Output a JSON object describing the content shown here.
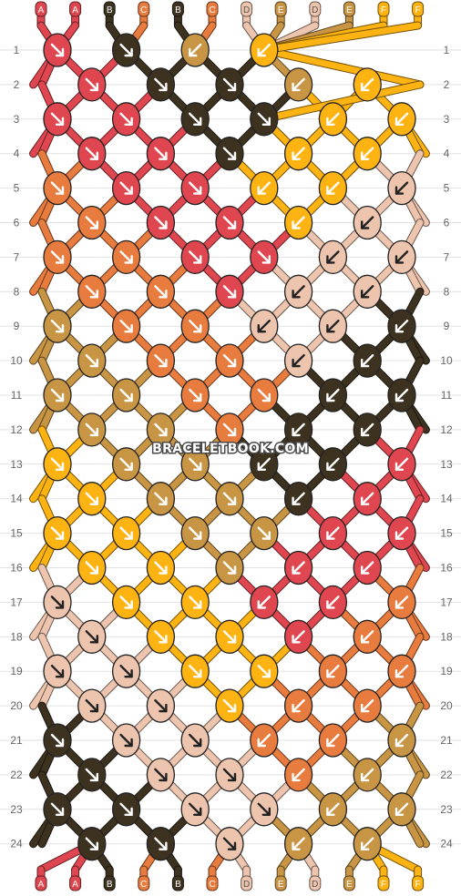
{
  "watermark": "BRACELETBOOK.COM",
  "colors": {
    "A": "#e0464f",
    "B": "#3d3220",
    "C": "#e87b3e",
    "D": "#edc4ae",
    "E": "#c89544",
    "F": "#fdb312"
  },
  "top_strand_letters": [
    "A",
    "A",
    "B",
    "C",
    "B",
    "C",
    "D",
    "E",
    "D",
    "E",
    "F",
    "F"
  ],
  "bottom_strand_letters": [
    "A",
    "A",
    "B",
    "C",
    "B",
    "C",
    "D",
    "E",
    "D",
    "E",
    "F",
    "F"
  ],
  "row_labels": [
    "1",
    "2",
    "3",
    "4",
    "5",
    "6",
    "7",
    "8",
    "9",
    "10",
    "11",
    "12",
    "13",
    "14",
    "15",
    "16",
    "17",
    "18",
    "19",
    "20",
    "21",
    "22",
    "23",
    "24"
  ],
  "knots": [
    [
      [
        "A",
        "dr"
      ],
      [
        "B",
        "dr"
      ],
      [
        "E",
        "dl"
      ],
      [
        "F",
        "dl"
      ]
    ],
    [
      [
        "A",
        "dr"
      ],
      [
        "B",
        "dr"
      ],
      [
        "B",
        "dr"
      ],
      [
        "E",
        "dl"
      ],
      [
        "F",
        "dl"
      ]
    ],
    [
      [
        "A",
        "dr"
      ],
      [
        "A",
        "dr"
      ],
      [
        "B",
        "dr"
      ],
      [
        "B",
        "dr"
      ],
      [
        "F",
        "dl"
      ],
      [
        "F",
        "dl"
      ]
    ],
    [
      [
        "A",
        "dr"
      ],
      [
        "A",
        "dr"
      ],
      [
        "B",
        "dr"
      ],
      [
        "F",
        "dl"
      ],
      [
        "F",
        "dl"
      ]
    ],
    [
      [
        "C",
        "dr"
      ],
      [
        "A",
        "dr"
      ],
      [
        "A",
        "dr"
      ],
      [
        "F",
        "dl"
      ],
      [
        "F",
        "dl"
      ],
      [
        "D",
        "dl"
      ]
    ],
    [
      [
        "C",
        "dr"
      ],
      [
        "A",
        "dr"
      ],
      [
        "A",
        "dr"
      ],
      [
        "F",
        "dl"
      ],
      [
        "D",
        "dl"
      ]
    ],
    [
      [
        "C",
        "dr"
      ],
      [
        "C",
        "dr"
      ],
      [
        "A",
        "dr"
      ],
      [
        "A",
        "dr"
      ],
      [
        "D",
        "dl"
      ],
      [
        "D",
        "dl"
      ]
    ],
    [
      [
        "C",
        "dr"
      ],
      [
        "C",
        "dr"
      ],
      [
        "A",
        "dr"
      ],
      [
        "D",
        "dl"
      ],
      [
        "D",
        "dl"
      ]
    ],
    [
      [
        "E",
        "dr"
      ],
      [
        "C",
        "dr"
      ],
      [
        "C",
        "dr"
      ],
      [
        "D",
        "dl"
      ],
      [
        "D",
        "dl"
      ],
      [
        "B",
        "dl"
      ]
    ],
    [
      [
        "E",
        "dr"
      ],
      [
        "C",
        "dr"
      ],
      [
        "C",
        "dr"
      ],
      [
        "D",
        "dl"
      ],
      [
        "B",
        "dl"
      ]
    ],
    [
      [
        "E",
        "dr"
      ],
      [
        "E",
        "dr"
      ],
      [
        "C",
        "dr"
      ],
      [
        "C",
        "dr"
      ],
      [
        "B",
        "dl"
      ],
      [
        "B",
        "dl"
      ]
    ],
    [
      [
        "E",
        "dr"
      ],
      [
        "E",
        "dr"
      ],
      [
        "C",
        "dr"
      ],
      [
        "B",
        "dl"
      ],
      [
        "B",
        "dl"
      ]
    ],
    [
      [
        "F",
        "dr"
      ],
      [
        "E",
        "dr"
      ],
      [
        "E",
        "dr"
      ],
      [
        "B",
        "dl"
      ],
      [
        "B",
        "dl"
      ],
      [
        "A",
        "dl"
      ]
    ],
    [
      [
        "F",
        "dr"
      ],
      [
        "E",
        "dr"
      ],
      [
        "E",
        "dr"
      ],
      [
        "B",
        "dl"
      ],
      [
        "A",
        "dl"
      ]
    ],
    [
      [
        "F",
        "dr"
      ],
      [
        "F",
        "dr"
      ],
      [
        "E",
        "dr"
      ],
      [
        "E",
        "dr"
      ],
      [
        "A",
        "dl"
      ],
      [
        "A",
        "dl"
      ]
    ],
    [
      [
        "F",
        "dr"
      ],
      [
        "F",
        "dr"
      ],
      [
        "E",
        "dr"
      ],
      [
        "A",
        "dl"
      ],
      [
        "A",
        "dl"
      ]
    ],
    [
      [
        "D",
        "dr"
      ],
      [
        "F",
        "dr"
      ],
      [
        "F",
        "dr"
      ],
      [
        "A",
        "dl"
      ],
      [
        "A",
        "dl"
      ],
      [
        "C",
        "dl"
      ]
    ],
    [
      [
        "D",
        "dr"
      ],
      [
        "F",
        "dr"
      ],
      [
        "F",
        "dr"
      ],
      [
        "A",
        "dl"
      ],
      [
        "C",
        "dl"
      ]
    ],
    [
      [
        "D",
        "dr"
      ],
      [
        "D",
        "dr"
      ],
      [
        "F",
        "dr"
      ],
      [
        "F",
        "dr"
      ],
      [
        "C",
        "dl"
      ],
      [
        "C",
        "dl"
      ]
    ],
    [
      [
        "D",
        "dr"
      ],
      [
        "D",
        "dr"
      ],
      [
        "F",
        "dr"
      ],
      [
        "C",
        "dl"
      ],
      [
        "C",
        "dl"
      ]
    ],
    [
      [
        "B",
        "dr"
      ],
      [
        "D",
        "dr"
      ],
      [
        "D",
        "dr"
      ],
      [
        "C",
        "dl"
      ],
      [
        "C",
        "dl"
      ],
      [
        "E",
        "dl"
      ]
    ],
    [
      [
        "B",
        "dr"
      ],
      [
        "D",
        "dr"
      ],
      [
        "D",
        "dr"
      ],
      [
        "C",
        "dl"
      ],
      [
        "E",
        "dl"
      ]
    ],
    [
      [
        "B",
        "dr"
      ],
      [
        "B",
        "dr"
      ],
      [
        "D",
        "dr"
      ],
      [
        "D",
        "dr"
      ],
      [
        "E",
        "dl"
      ],
      [
        "E",
        "dl"
      ]
    ],
    [
      [
        "B",
        "dr"
      ],
      [
        "B",
        "dr"
      ],
      [
        "D",
        "dr"
      ],
      [
        "E",
        "dl"
      ],
      [
        "E",
        "dl"
      ]
    ]
  ]
}
